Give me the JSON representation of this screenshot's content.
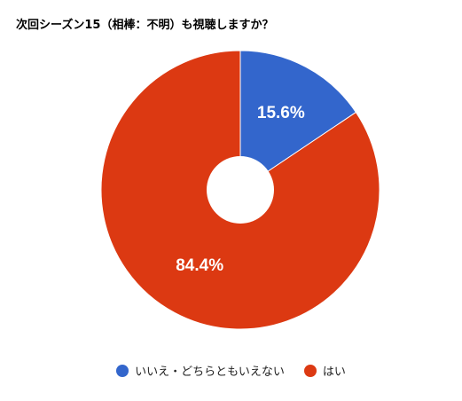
{
  "chart_data": {
    "type": "pie",
    "title": "次回シーズン15（相棒：不明）も視聴しますか？",
    "donut_hole": true,
    "legend_position": "bottom",
    "slices": [
      {
        "label": "いいえ・どちらともいえない",
        "value": 15.6,
        "value_label": "15.6%",
        "color": "#3366cc"
      },
      {
        "label": "はい",
        "value": 84.4,
        "value_label": "84.4%",
        "color": "#dc3912"
      }
    ]
  }
}
